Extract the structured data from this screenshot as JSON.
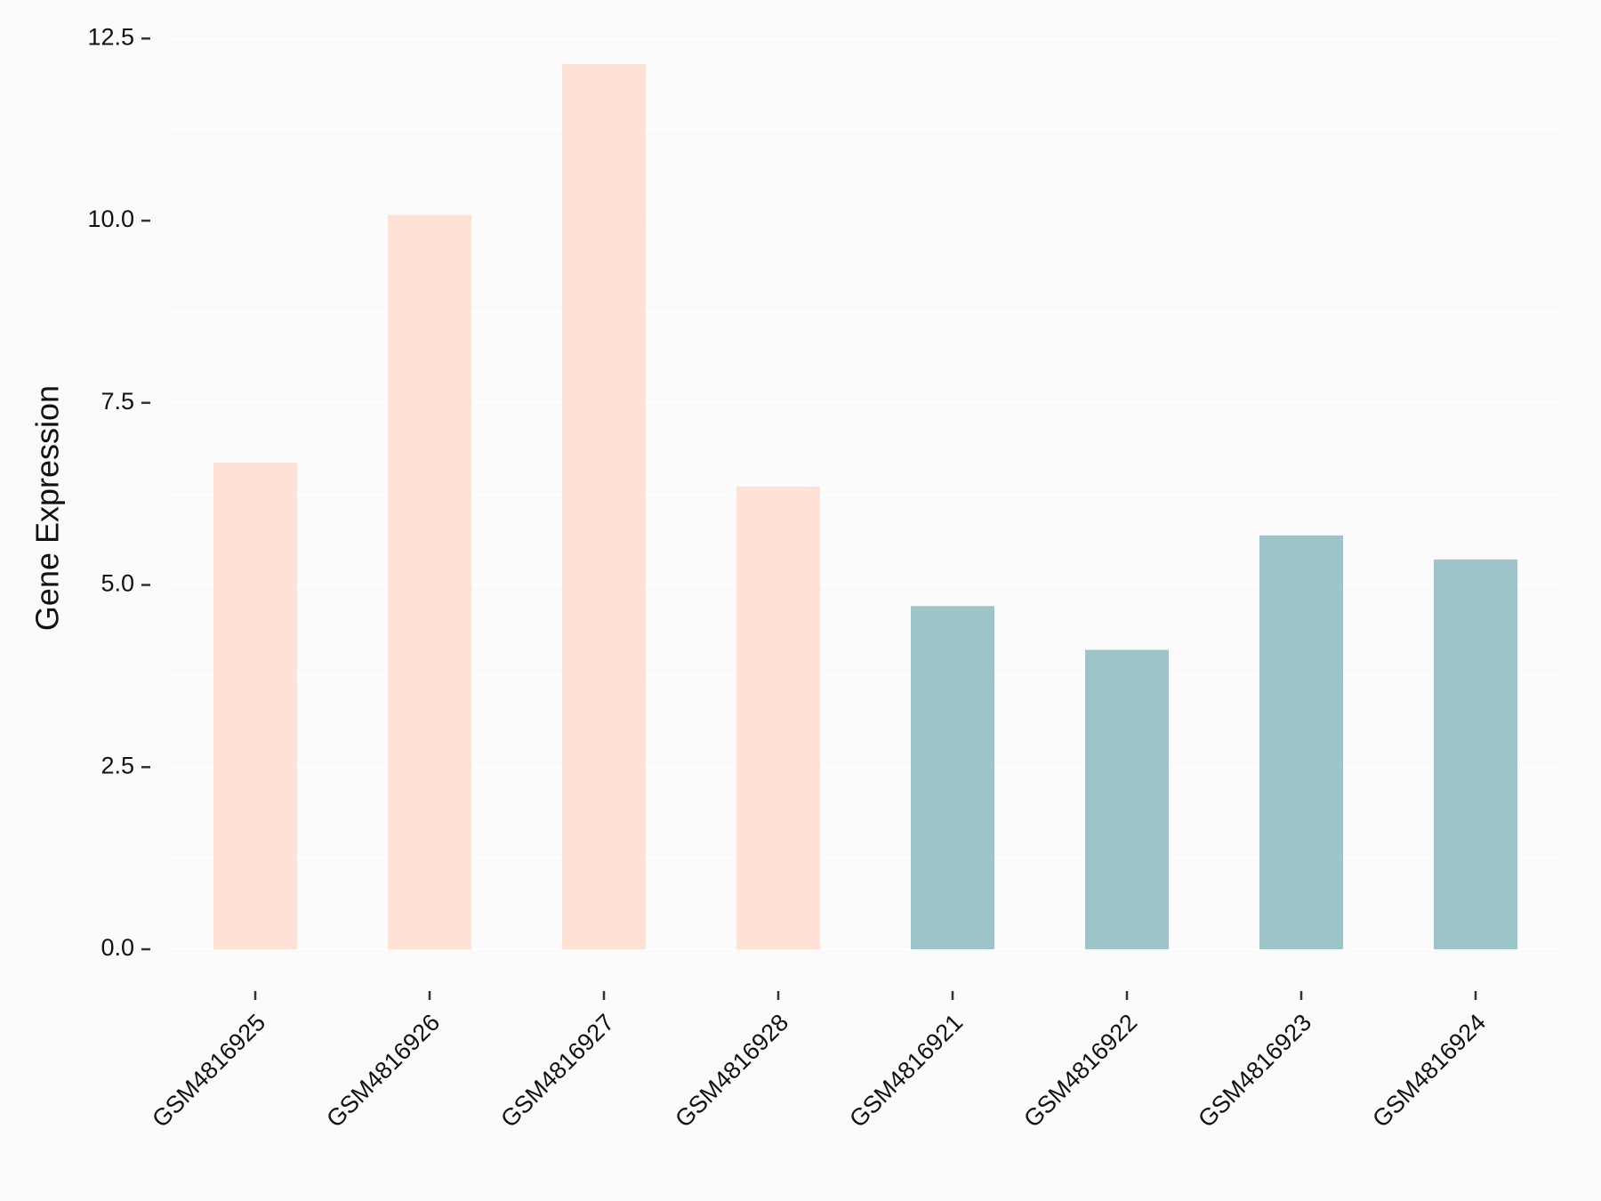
{
  "chart_data": {
    "type": "bar",
    "y_label": "Gene Expression",
    "categories": [
      "GSM4816925",
      "GSM4816926",
      "GSM4816927",
      "GSM4816928",
      "GSM4816921",
      "GSM4816922",
      "GSM4816923",
      "GSM4816924"
    ],
    "values": [
      6.68,
      10.08,
      12.15,
      6.35,
      4.71,
      4.11,
      5.68,
      5.35
    ],
    "colors": [
      "#ffe1d6",
      "#ffe1d6",
      "#ffe1d6",
      "#ffe1d6",
      "#9dc4c8",
      "#9dc4c8",
      "#9dc4c8",
      "#9dc4c8"
    ],
    "ylim": [
      -0.61,
      12.76
    ],
    "yticks": [
      {
        "value": 0,
        "label": "0.0"
      },
      2.5,
      {
        "value": 5,
        "label": "5.0"
      },
      7.5,
      {
        "value": 10,
        "label": "10.0"
      },
      12.5
    ],
    "minor_yticks": [
      1.25,
      3.75,
      6.25,
      8.75,
      11.25
    ],
    "grid": true
  }
}
